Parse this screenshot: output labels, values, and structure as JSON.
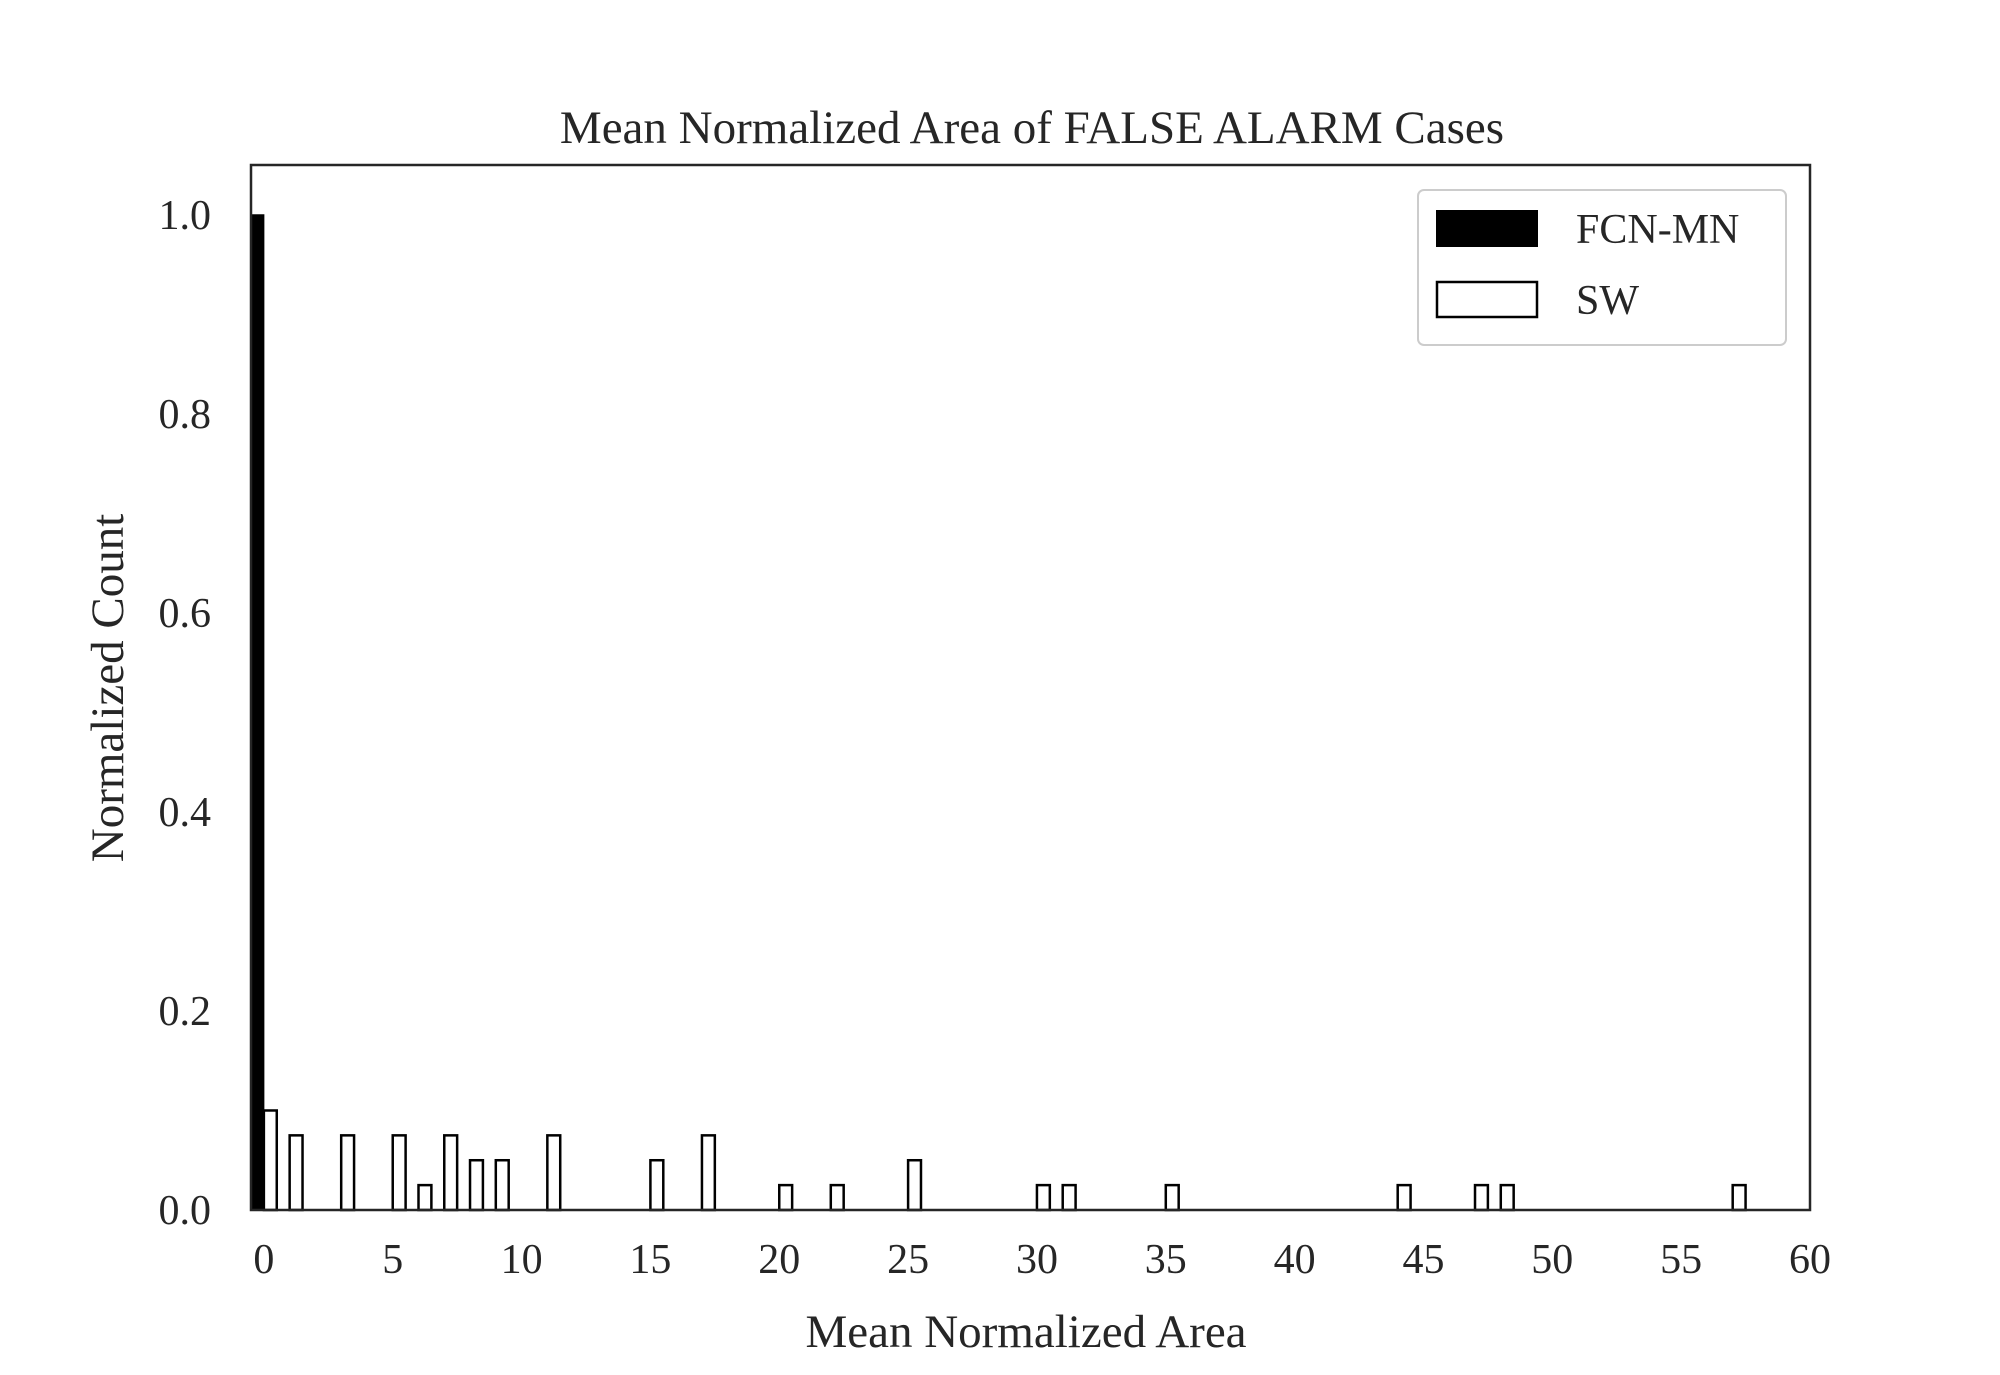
{
  "chart_data": {
    "type": "bar",
    "title": "Mean Normalized Area of FALSE ALARM Cases",
    "xlabel": "Mean Normalized Area",
    "ylabel": "Normalized Count",
    "xlim": [
      -0.5,
      60
    ],
    "ylim": [
      0,
      1.05
    ],
    "xticks": [
      0,
      5,
      10,
      15,
      20,
      25,
      30,
      35,
      40,
      45,
      50,
      55,
      60
    ],
    "xtick_labels": [
      "0",
      "5",
      "10",
      "15",
      "20",
      "25",
      "30",
      "35",
      "40",
      "45",
      "50",
      "55",
      "60"
    ],
    "yticks": [
      0.0,
      0.2,
      0.4,
      0.6,
      0.8,
      1.0
    ],
    "ytick_labels": [
      "0.0",
      "0.2",
      "0.4",
      "0.6",
      "0.8",
      "1.0"
    ],
    "bin_width": 0.5,
    "grid": false,
    "legend_position": "top-right",
    "series": [
      {
        "name": "FCN-MN",
        "style": "filled",
        "color": "#000000",
        "bins": [
          {
            "x": -0.5,
            "value": 1.0
          }
        ]
      },
      {
        "name": "SW",
        "style": "outline",
        "color": "#000000",
        "bins": [
          {
            "x": 0.0,
            "value": 0.1
          },
          {
            "x": 1.0,
            "value": 0.075
          },
          {
            "x": 3.0,
            "value": 0.075
          },
          {
            "x": 5.0,
            "value": 0.075
          },
          {
            "x": 6.0,
            "value": 0.025
          },
          {
            "x": 7.0,
            "value": 0.075
          },
          {
            "x": 8.0,
            "value": 0.05
          },
          {
            "x": 9.0,
            "value": 0.05
          },
          {
            "x": 11.0,
            "value": 0.075
          },
          {
            "x": 15.0,
            "value": 0.05
          },
          {
            "x": 17.0,
            "value": 0.075
          },
          {
            "x": 20.0,
            "value": 0.025
          },
          {
            "x": 22.0,
            "value": 0.025
          },
          {
            "x": 25.0,
            "value": 0.05
          },
          {
            "x": 30.0,
            "value": 0.025
          },
          {
            "x": 31.0,
            "value": 0.025
          },
          {
            "x": 35.0,
            "value": 0.025
          },
          {
            "x": 44.0,
            "value": 0.025
          },
          {
            "x": 47.0,
            "value": 0.025
          },
          {
            "x": 48.0,
            "value": 0.025
          },
          {
            "x": 57.0,
            "value": 0.025
          }
        ]
      }
    ]
  }
}
